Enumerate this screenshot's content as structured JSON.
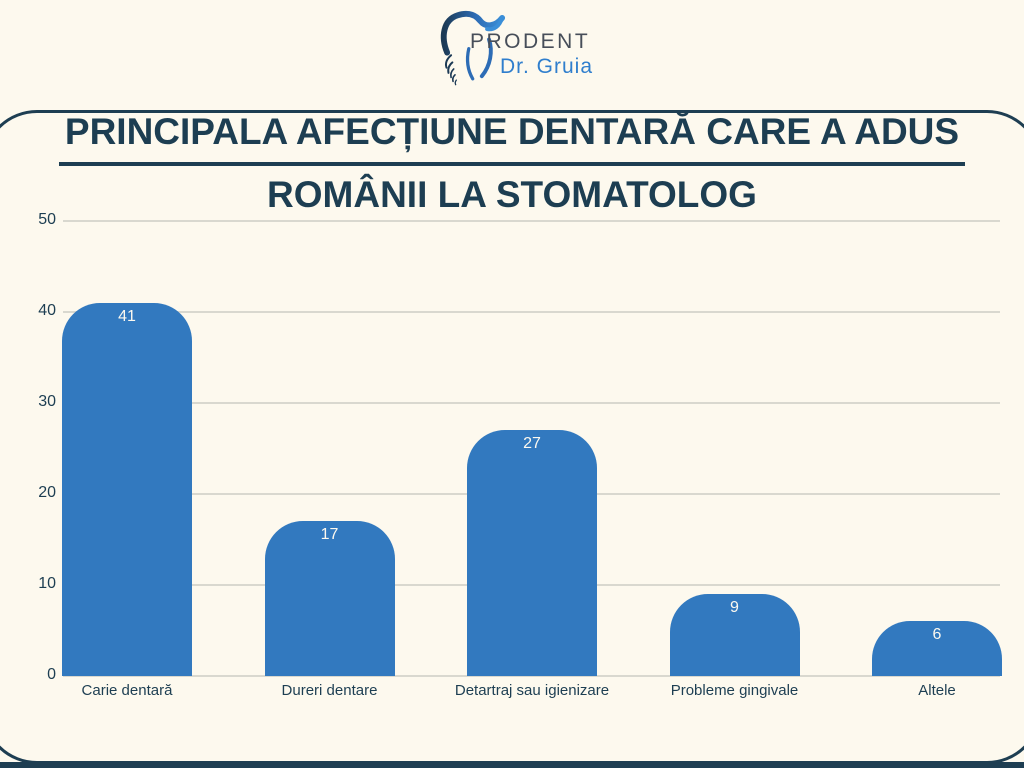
{
  "logo": {
    "brand": "PRODENT",
    "sub": "Dr. Gruia"
  },
  "title": {
    "line1": "PRINCIPALA AFECȚIUNE DENTARĂ CARE A ADUS",
    "line2": "ROMÂNII LA STOMATOLOG"
  },
  "chart_data": {
    "type": "bar",
    "title": "PRINCIPALA AFECȚIUNE DENTARĂ CARE A ADUS ROMÂNII LA STOMATOLOG",
    "categories": [
      "Carie dentară",
      "Dureri dentare",
      "Detartraj sau igienizare",
      "Probleme gingivale",
      "Altele"
    ],
    "values": [
      41,
      17,
      27,
      9,
      6
    ],
    "xlabel": "",
    "ylabel": "",
    "ylim": [
      0,
      50
    ],
    "yticks": [
      0,
      10,
      20,
      30,
      40,
      50
    ],
    "grid": true,
    "legend": false
  },
  "colors": {
    "background": "#fdf9ee",
    "bar": "#3279bf",
    "value_label": "#fcf9f0",
    "text_dark": "#1d3e52",
    "gridline": "#d9d8cf",
    "brand_text": "#474e59",
    "brand_blue": "#2f7ecd"
  }
}
